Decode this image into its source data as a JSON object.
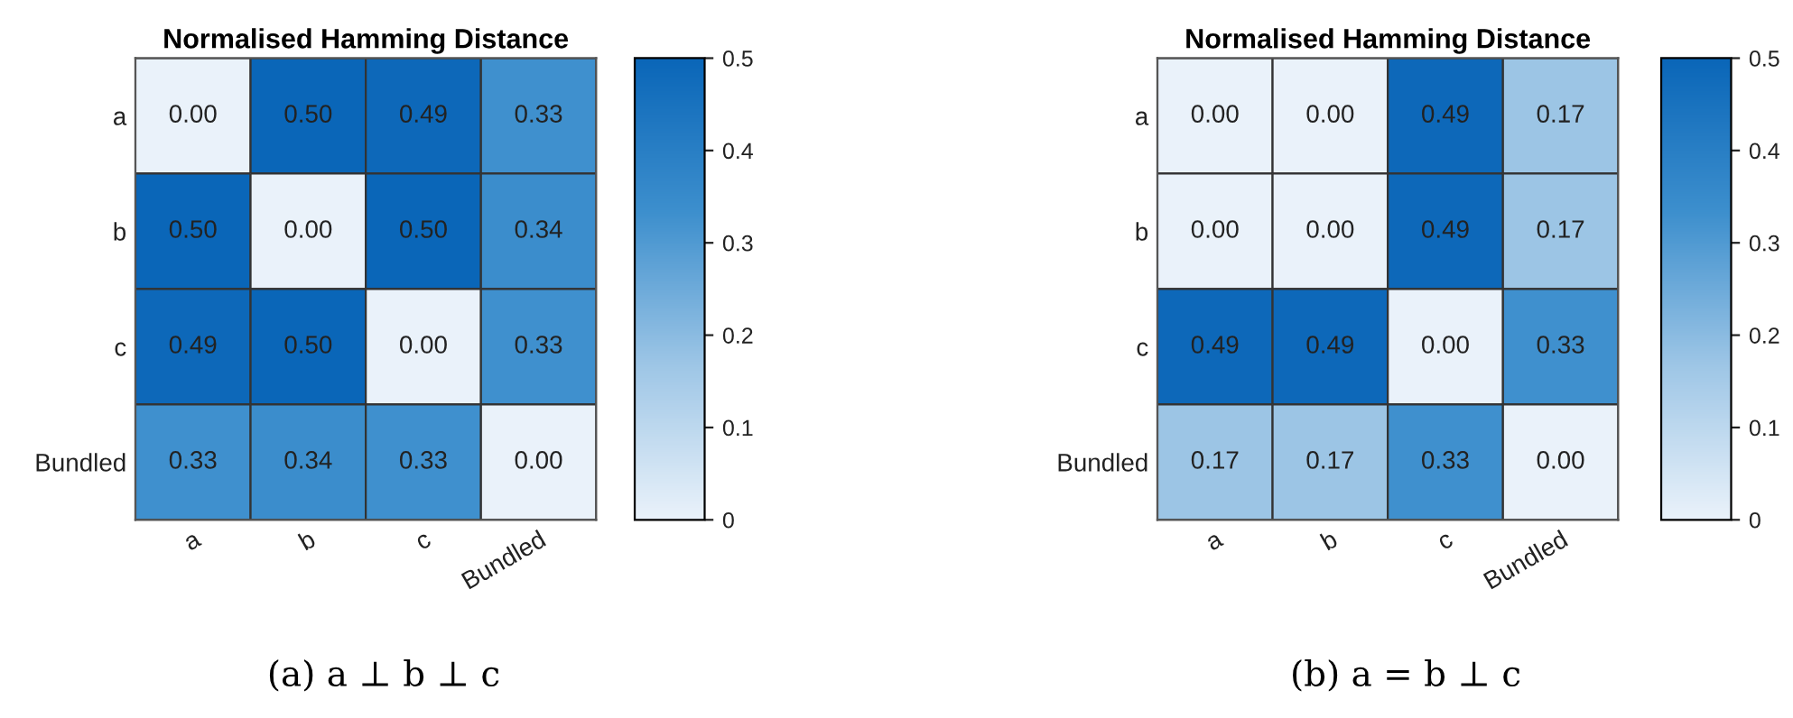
{
  "chart_data": [
    {
      "type": "heatmap",
      "title": "Normalised Hamming Distance",
      "categories": [
        "a",
        "b",
        "c",
        "Bundled"
      ],
      "y_categories": [
        "a",
        "b",
        "c",
        "Bundled"
      ],
      "cells": [
        [
          0.0,
          0.5,
          0.49,
          0.33
        ],
        [
          0.5,
          0.0,
          0.5,
          0.34
        ],
        [
          0.49,
          0.5,
          0.0,
          0.33
        ],
        [
          0.33,
          0.34,
          0.33,
          0.0
        ]
      ],
      "cell_labels": [
        [
          "0.00",
          "0.50",
          "0.49",
          "0.33"
        ],
        [
          "0.50",
          "0.00",
          "0.50",
          "0.34"
        ],
        [
          "0.49",
          "0.50",
          "0.00",
          "0.33"
        ],
        [
          "0.33",
          "0.34",
          "0.33",
          "0.00"
        ]
      ],
      "clim": [
        0,
        0.5
      ],
      "cticks": [
        0,
        0.1,
        0.2,
        0.3,
        0.4,
        0.5
      ],
      "annotations": [
        "(a) a ⊥ b ⊥ c"
      ]
    },
    {
      "type": "heatmap",
      "title": "Normalised Hamming Distance",
      "categories": [
        "a",
        "b",
        "c",
        "Bundled"
      ],
      "y_categories": [
        "a",
        "b",
        "c",
        "Bundled"
      ],
      "cells": [
        [
          0.0,
          0.0,
          0.49,
          0.17
        ],
        [
          0.0,
          0.0,
          0.49,
          0.17
        ],
        [
          0.49,
          0.49,
          0.0,
          0.33
        ],
        [
          0.17,
          0.17,
          0.33,
          0.0
        ]
      ],
      "cell_labels": [
        [
          "0.00",
          "0.00",
          "0.49",
          "0.17"
        ],
        [
          "0.00",
          "0.00",
          "0.49",
          "0.17"
        ],
        [
          "0.49",
          "0.49",
          "0.00",
          "0.33"
        ],
        [
          "0.17",
          "0.17",
          "0.33",
          "0.00"
        ]
      ],
      "clim": [
        0,
        0.5
      ],
      "cticks": [
        0,
        0.1,
        0.2,
        0.3,
        0.4,
        0.5
      ],
      "annotations": [
        "(b) a = b ⊥ c"
      ]
    }
  ]
}
